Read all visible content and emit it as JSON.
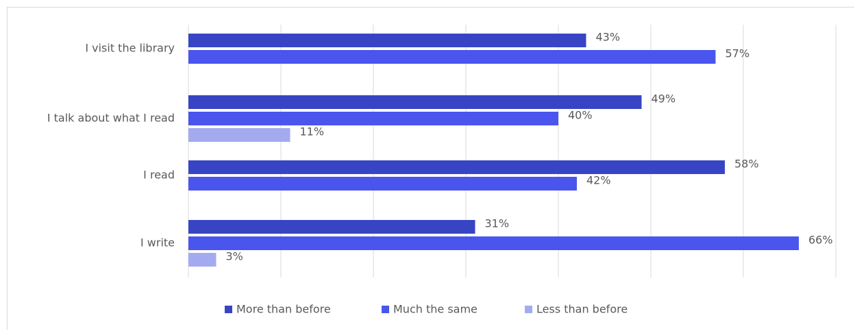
{
  "chart_data": {
    "type": "bar",
    "orientation": "horizontal",
    "categories": [
      "I visit the library",
      "I talk about what I read",
      "I read",
      "I write"
    ],
    "series": [
      {
        "name": "More than before",
        "color": "#3745c4",
        "values": [
          43,
          49,
          58,
          31
        ],
        "labels": [
          "43%",
          "49%",
          "58%",
          "31%"
        ]
      },
      {
        "name": "Much the same",
        "color": "#4a55ee",
        "values": [
          57,
          40,
          42,
          66
        ],
        "labels": [
          "57%",
          "40%",
          "42%",
          "66%"
        ]
      },
      {
        "name": "Less than before",
        "color": "#a3aaf0",
        "values": [
          null,
          11,
          null,
          3
        ],
        "labels": [
          null,
          "11%",
          null,
          "3%"
        ]
      }
    ],
    "xlim": [
      0,
      70
    ],
    "grid": true,
    "legend_position": "bottom"
  }
}
